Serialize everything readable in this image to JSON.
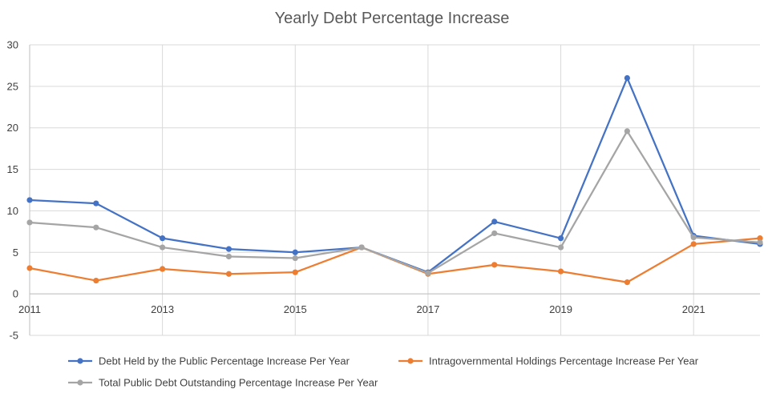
{
  "chart_data": {
    "type": "line",
    "title": "Yearly Debt Percentage Increase",
    "x": [
      2011,
      2012,
      2013,
      2014,
      2015,
      2016,
      2017,
      2018,
      2019,
      2020,
      2021,
      2022
    ],
    "x_tick_labels": [
      "2011",
      "2013",
      "2015",
      "2017",
      "2019",
      "2021"
    ],
    "y_tick_labels": [
      "30",
      "25",
      "20",
      "15",
      "10",
      "5",
      "0",
      "-5"
    ],
    "ylim": [
      -5,
      30
    ],
    "xlim": [
      2011,
      2022
    ],
    "grid": true,
    "legend_position": "bottom",
    "series": [
      {
        "name": "Debt Held by the Public Percentage Increase Per Year",
        "color": "#4472c4",
        "values": [
          11.3,
          10.9,
          6.7,
          5.4,
          5.0,
          5.6,
          2.6,
          8.7,
          6.7,
          26.0,
          7.0,
          6.0
        ]
      },
      {
        "name": "Intragovernmental Holdings Percentage Increase Per Year",
        "color": "#ed7d31",
        "values": [
          3.1,
          1.6,
          3.0,
          2.4,
          2.6,
          5.6,
          2.4,
          3.5,
          2.7,
          1.4,
          6.0,
          6.7
        ]
      },
      {
        "name": "Total Public Debt Outstanding Percentage Increase Per Year",
        "color": "#a5a5a5",
        "values": [
          8.6,
          8.0,
          5.6,
          4.5,
          4.3,
          5.6,
          2.5,
          7.3,
          5.6,
          19.6,
          6.8,
          6.2
        ]
      }
    ]
  }
}
